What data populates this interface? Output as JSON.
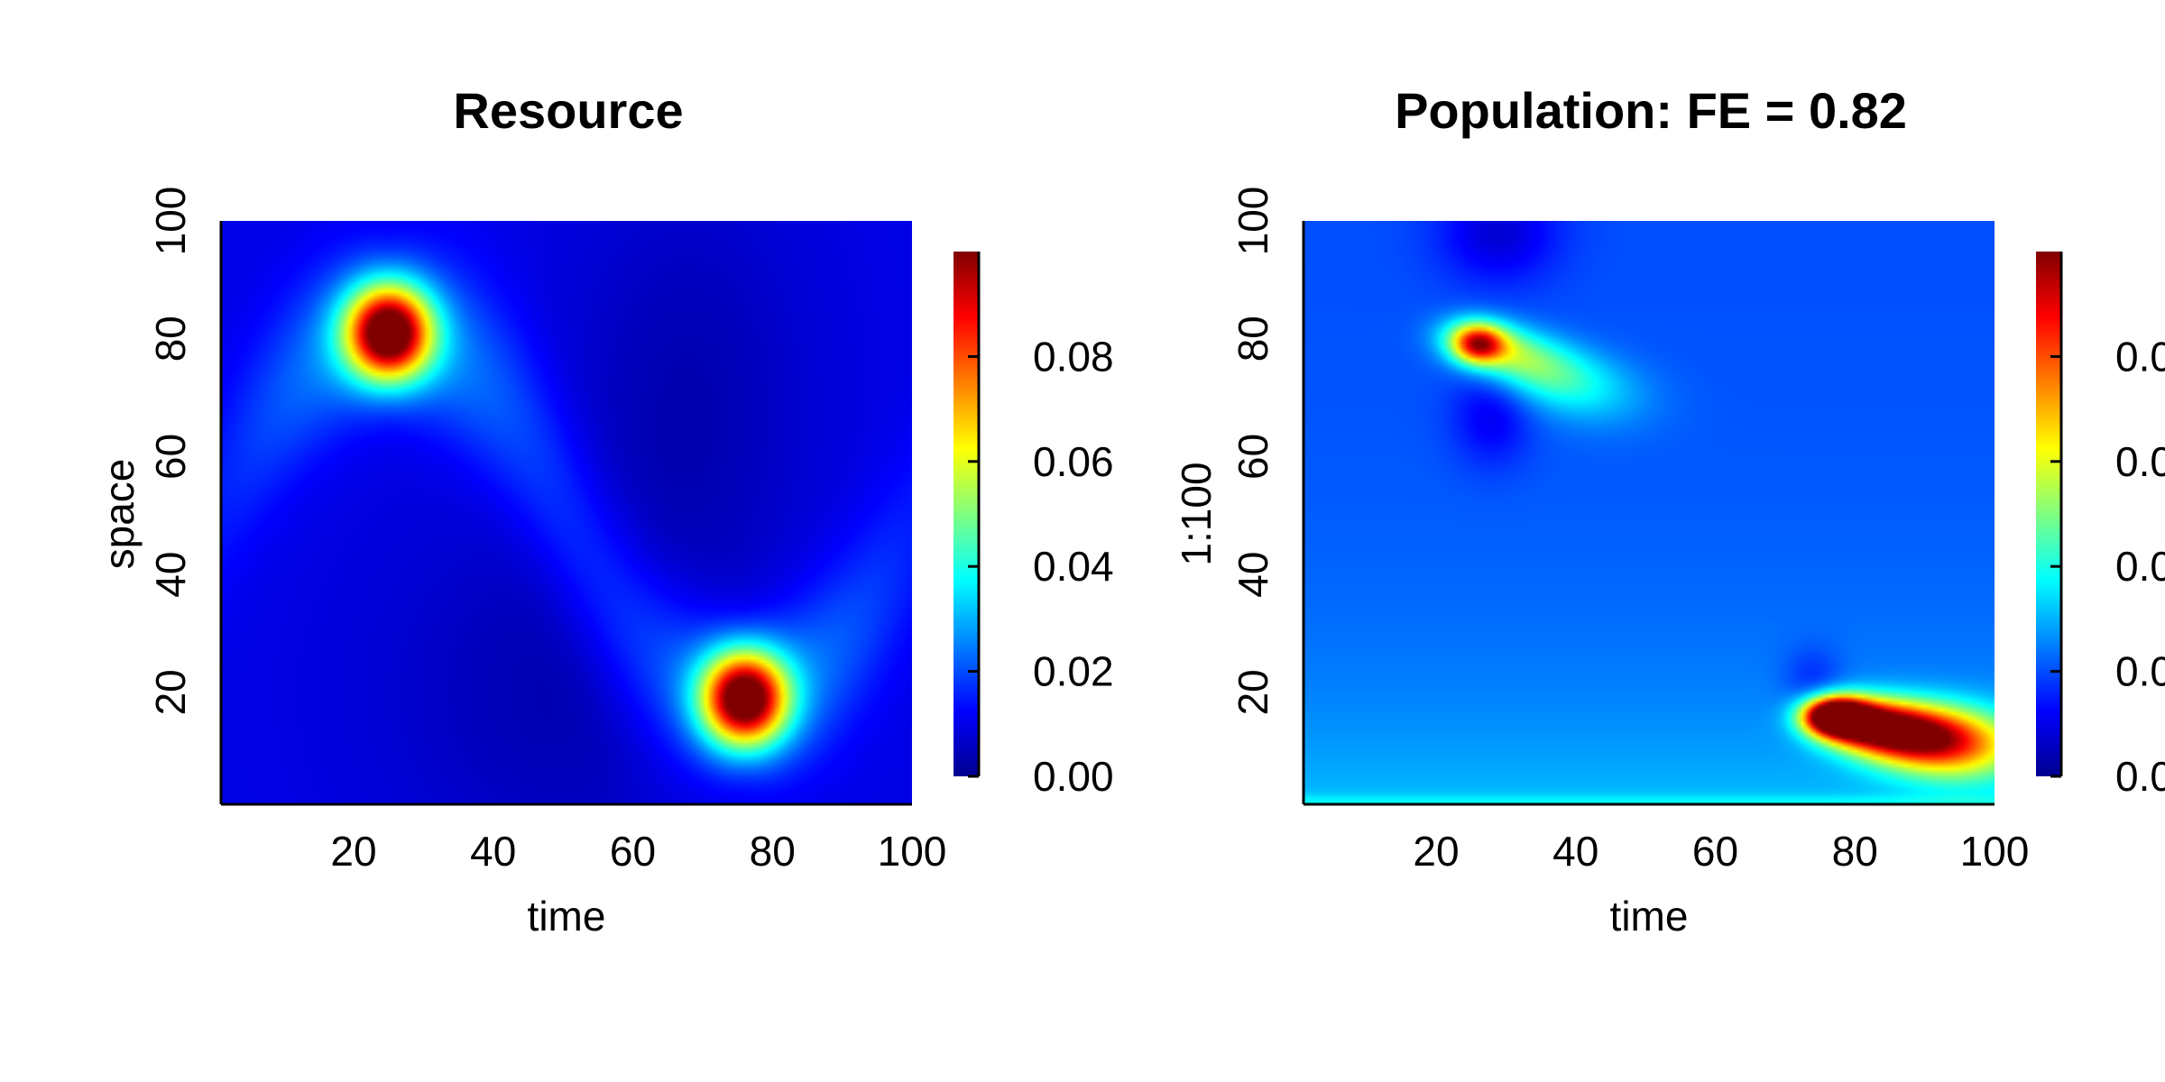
{
  "chart_data": [
    {
      "type": "heatmap",
      "title": "Resource",
      "xlabel": "time",
      "ylabel": "space",
      "xlim": [
        1,
        100
      ],
      "ylim": [
        1,
        100
      ],
      "x_ticks": [
        "20",
        "40",
        "60",
        "80",
        "100"
      ],
      "y_ticks": [
        "20",
        "40",
        "60",
        "80",
        "100"
      ],
      "colorbar": {
        "min": 0.0,
        "max": 0.1,
        "ticks": [
          "0.00",
          "0.02",
          "0.04",
          "0.06",
          "0.08"
        ]
      },
      "colormap": [
        "#00008f",
        "#0000ff",
        "#00ffff",
        "#ffff00",
        "#ff0000",
        "#800000"
      ],
      "features": [
        {
          "description": "peak",
          "x": 25,
          "y": 81,
          "value": 0.098
        },
        {
          "description": "peak",
          "x": 76,
          "y": 19,
          "value": 0.098
        }
      ]
    },
    {
      "type": "heatmap",
      "title": "Population: FE = 0.82",
      "xlabel": "time",
      "ylabel": "1:100",
      "xlim": [
        1,
        100
      ],
      "ylim": [
        1,
        100
      ],
      "x_ticks": [
        "20",
        "40",
        "60",
        "80",
        "100"
      ],
      "y_ticks": [
        "20",
        "40",
        "60",
        "80",
        "100"
      ],
      "colorbar": {
        "min": 0.0,
        "max": 0.1,
        "ticks": [
          "0.0",
          "0.0",
          "0.0",
          "0.0",
          "0.0"
        ]
      },
      "colormap": [
        "#00008f",
        "#0000ff",
        "#00ffff",
        "#ffff00",
        "#ff0000",
        "#800000"
      ],
      "features": [
        {
          "description": "peak",
          "x": 26,
          "y": 79,
          "value": 0.07
        },
        {
          "description": "peak",
          "x": 77,
          "y": 16,
          "value": 0.098
        }
      ]
    }
  ]
}
